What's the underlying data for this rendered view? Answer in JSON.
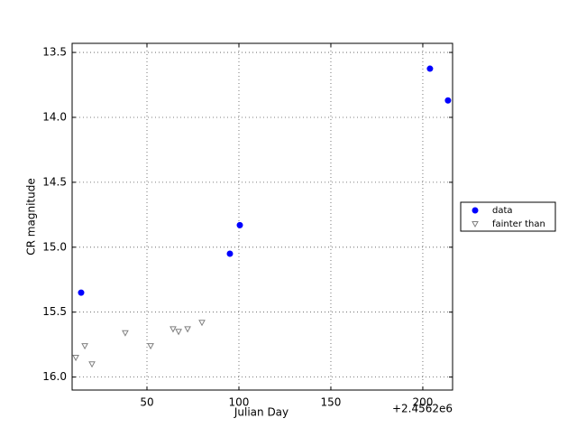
{
  "chart_data": {
    "type": "scatter",
    "xlabel": "Julian Day",
    "ylabel": "CR magnitude",
    "x_offset_label": "+2.4562e6",
    "xlim": [
      9.3,
      216.2
    ],
    "xticks": [
      50,
      100,
      150,
      200
    ],
    "ylim": [
      16.1,
      13.43
    ],
    "yticks": [
      13.5,
      {
        "value": 14,
        "label": "14.0"
      },
      14.5,
      {
        "value": 15,
        "label": "15.0"
      },
      15.5,
      {
        "value": 16,
        "label": "16.0"
      }
    ],
    "grid": true,
    "legend": "outside-right",
    "series": [
      {
        "name": "data",
        "color": "#0000ff",
        "marker": "circle",
        "x": [
          14.2,
          95.1,
          100.5,
          203.9,
          213.7
        ],
        "values": [
          15.35,
          15.05,
          14.83,
          13.625,
          13.87
        ]
      },
      {
        "name": "fainter than",
        "color": "#808080",
        "marker": "triangle-down",
        "x": [
          11.3,
          16.2,
          20.1,
          38.2,
          52.0,
          64.2,
          67.2,
          72.1,
          79.9
        ],
        "values": [
          15.85,
          15.76,
          15.9,
          15.66,
          15.76,
          15.63,
          15.65,
          15.63,
          15.58
        ]
      }
    ]
  }
}
